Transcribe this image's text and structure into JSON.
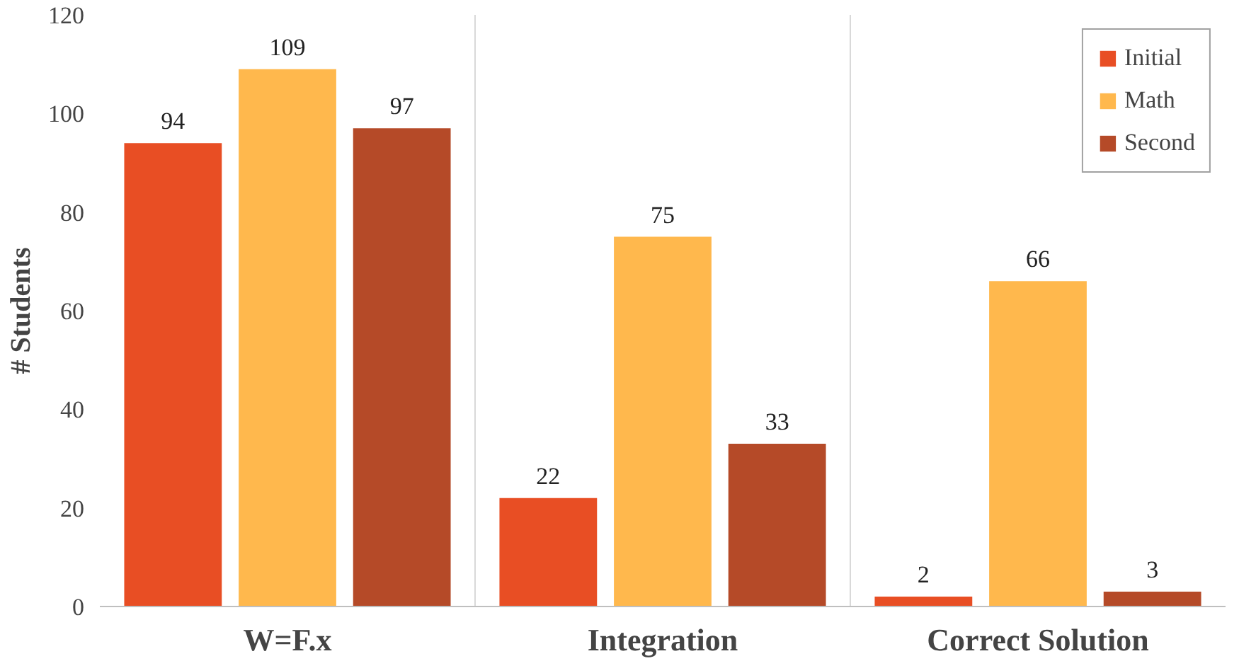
{
  "chart_data": {
    "type": "bar",
    "ylabel": "# Students",
    "categories": [
      "W=F.x",
      "Integration",
      "Correct Solution"
    ],
    "series": [
      {
        "name": "Initial",
        "color": "#e84e24",
        "values": [
          94,
          22,
          2
        ]
      },
      {
        "name": "Math",
        "color": "#ffb84d",
        "values": [
          109,
          75,
          66
        ]
      },
      {
        "name": "Second",
        "color": "#b54a28",
        "values": [
          97,
          33,
          3
        ]
      }
    ],
    "ylim": [
      0,
      120
    ],
    "yticks": [
      0,
      20,
      40,
      60,
      80,
      100,
      120
    ],
    "grid": "x",
    "legend": "top right",
    "data_labels": true
  }
}
